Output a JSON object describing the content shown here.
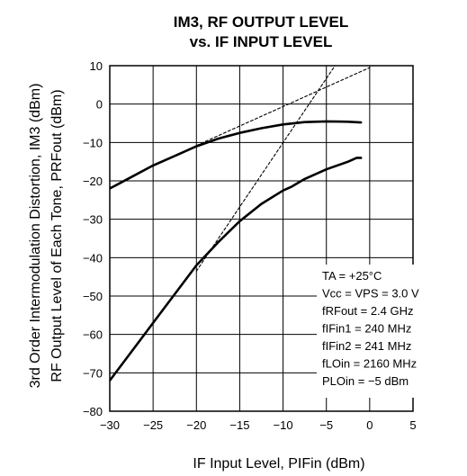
{
  "chart_data": {
    "type": "line",
    "title": "IM3, RF OUTPUT LEVEL",
    "subtitle": "vs. IF INPUT LEVEL",
    "xlabel": "IF Input Level, PIFin (dBm)",
    "ylabel_line1": "3rd Order Intermodulation Distortion, IM3 (dBm)",
    "ylabel_line2": "RF Output Level of Each Tone, PRFout (dBm)",
    "xlim": [
      -30,
      5
    ],
    "ylim": [
      -80,
      10
    ],
    "x_ticks": [
      -30,
      -25,
      -20,
      -15,
      -10,
      -5,
      0,
      5
    ],
    "y_ticks": [
      10,
      0,
      -10,
      -20,
      -30,
      -40,
      -50,
      -60,
      -70,
      -80
    ],
    "x_tick_labels": [
      "−30",
      "−25",
      "−20",
      "−15",
      "−10",
      "−5",
      "0",
      "5"
    ],
    "y_tick_labels": [
      "10",
      "0",
      "−10",
      "−20",
      "−30",
      "−40",
      "−50",
      "−60",
      "−70",
      "−80"
    ],
    "grid": true,
    "series": [
      {
        "style": "solid",
        "x": [
          -30,
          -27.5,
          -25,
          -22.5,
          -20,
          -17.5,
          -15,
          -12.5,
          -10,
          -7.5,
          -5,
          -2.5,
          -1
        ],
        "y": [
          -22,
          -19,
          -16,
          -13.5,
          -11,
          -9,
          -7.5,
          -6.3,
          -5.3,
          -4.7,
          -4.5,
          -4.6,
          -4.8
        ]
      },
      {
        "style": "solid",
        "x": [
          -30,
          -27.5,
          -25,
          -22.5,
          -20,
          -17.5,
          -15,
          -12.5,
          -10,
          -9,
          -7.5,
          -5,
          -2.5,
          -1.5,
          -1
        ],
        "y": [
          -72,
          -64.5,
          -57,
          -49.5,
          -42,
          -36,
          -30.5,
          -26,
          -22.5,
          -21.5,
          -19.5,
          -17,
          -15,
          -14,
          -14
        ]
      },
      {
        "style": "dashed",
        "x": [
          -20,
          0
        ],
        "y": [
          -10.8,
          9.5
        ]
      },
      {
        "style": "dashed",
        "x": [
          -20,
          -4
        ],
        "y": [
          -43.5,
          10
        ]
      }
    ],
    "conditions": [
      "TA = +25°C",
      "Vcc = VPS = 3.0 V",
      "fRFout = 2.4 GHz",
      "fIFin1 = 240 MHz",
      "fIFin2 = 241 MHz",
      "fLOin = 2160 MHz",
      "PLOin = −5 dBm"
    ]
  }
}
